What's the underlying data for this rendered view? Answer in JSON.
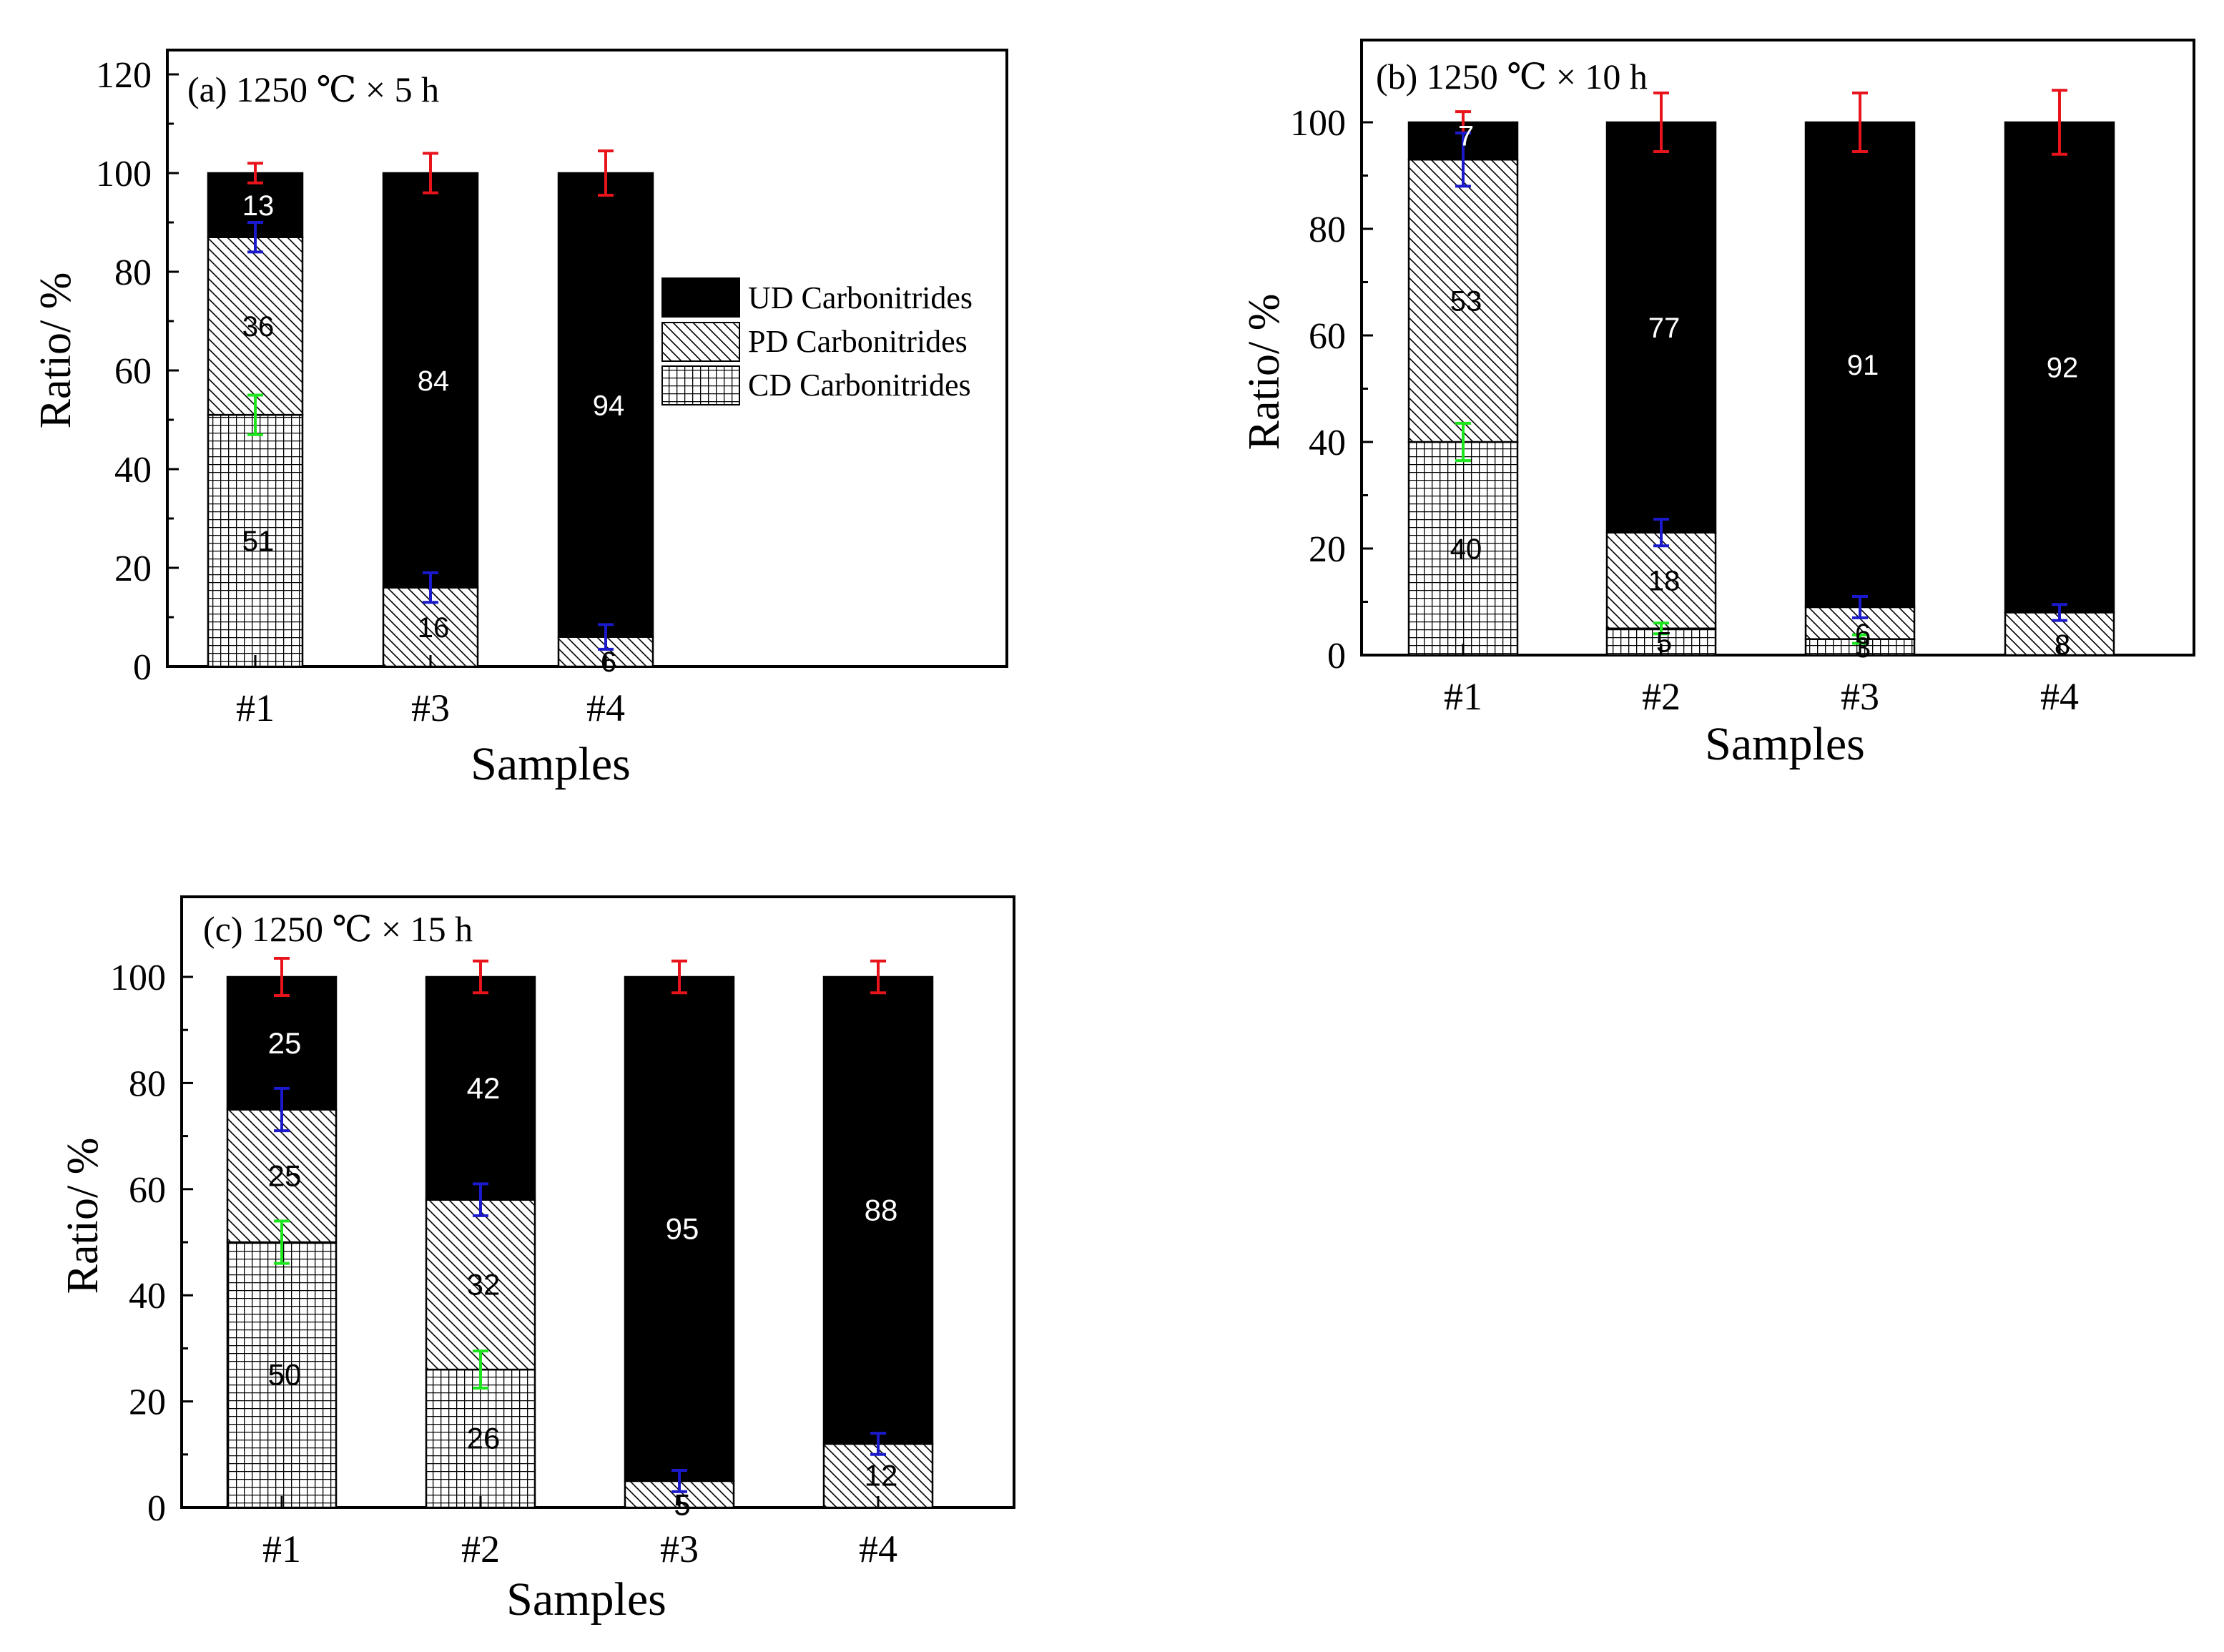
{
  "legend": {
    "UD": "UD Carbonitrides",
    "PD": "PD Carbonitrides",
    "CD": "CD Carbonitrides"
  },
  "colors": {
    "ud_fill": "#000000",
    "error_top": "#e8141b",
    "error_mid": "#1a1acc",
    "error_low": "#1ee61e"
  },
  "chart_data": [
    {
      "type": "bar",
      "stacked": true,
      "title": "(a) 1250 ℃ × 5 h",
      "xlabel": "Samples",
      "ylabel": "Ratio/ %",
      "ylim": [
        0,
        120
      ],
      "yticks": [
        0,
        20,
        40,
        60,
        80,
        100,
        120
      ],
      "categories": [
        "#1",
        "#3",
        "#4"
      ],
      "series": [
        {
          "name": "CD Carbonitrides",
          "values": [
            51,
            0,
            0
          ]
        },
        {
          "name": "PD Carbonitrides",
          "values": [
            36,
            16,
            6
          ]
        },
        {
          "name": "UD Carbonitrides",
          "values": [
            13,
            84,
            94
          ]
        }
      ],
      "labels": [
        {
          "cd": "51",
          "pd": "36",
          "ud": "13"
        },
        {
          "cd": "",
          "pd": "16",
          "ud": "84"
        },
        {
          "cd": "",
          "pd": "6",
          "ud": "94"
        }
      ],
      "error_bars": [
        {
          "top": 2,
          "mid": 3,
          "low": 4
        },
        {
          "top": 4,
          "mid": 3,
          "low": null
        },
        {
          "top": 4.5,
          "mid": 2.5,
          "low": null
        }
      ],
      "legend_position": "right"
    },
    {
      "type": "bar",
      "stacked": true,
      "title": "(b) 1250 ℃ × 10 h",
      "xlabel": "Samples",
      "ylabel": "Ratio/ %",
      "ylim": [
        0,
        110
      ],
      "yticks": [
        0,
        20,
        40,
        60,
        80,
        100
      ],
      "categories": [
        "#1",
        "#2",
        "#3",
        "#4"
      ],
      "series": [
        {
          "name": "CD Carbonitrides",
          "values": [
            40,
            5,
            3,
            0
          ]
        },
        {
          "name": "PD Carbonitrides",
          "values": [
            53,
            18,
            6,
            8
          ]
        },
        {
          "name": "UD Carbonitrides",
          "values": [
            7,
            77,
            91,
            92
          ]
        }
      ],
      "labels": [
        {
          "cd": "40",
          "pd": "53",
          "ud": "7"
        },
        {
          "cd": "5",
          "pd": "18",
          "ud": "77"
        },
        {
          "cd": "3",
          "pd": "6",
          "ud": "91"
        },
        {
          "cd": "",
          "pd": "8",
          "ud": "92"
        }
      ],
      "error_bars": [
        {
          "top": 2,
          "mid": 5,
          "low": 3.5
        },
        {
          "top": 5.5,
          "mid": 2.5,
          "low": 1
        },
        {
          "top": 5.5,
          "mid": 2,
          "low": 0.8
        },
        {
          "top": 6,
          "mid": 1.5,
          "low": null
        }
      ]
    },
    {
      "type": "bar",
      "stacked": true,
      "title": "(c) 1250 ℃ × 15 h",
      "xlabel": "Samples",
      "ylabel": "Ratio/ %",
      "ylim": [
        0,
        110
      ],
      "yticks": [
        0,
        20,
        40,
        60,
        80,
        100
      ],
      "categories": [
        "#1",
        "#2",
        "#3",
        "#4"
      ],
      "series": [
        {
          "name": "CD Carbonitrides",
          "values": [
            50,
            26,
            0,
            0
          ]
        },
        {
          "name": "PD Carbonitrides",
          "values": [
            25,
            32,
            5,
            12
          ]
        },
        {
          "name": "UD Carbonitrides",
          "values": [
            25,
            42,
            95,
            88
          ]
        }
      ],
      "labels": [
        {
          "cd": "50",
          "pd": "25",
          "ud": "25"
        },
        {
          "cd": "26",
          "pd": "32",
          "ud": "42"
        },
        {
          "cd": "",
          "pd": "5",
          "ud": "95"
        },
        {
          "cd": "",
          "pd": "12",
          "ud": "88"
        }
      ],
      "error_bars": [
        {
          "top": 3.5,
          "mid": 4,
          "low": 4
        },
        {
          "top": 3,
          "mid": 3,
          "low": 3.5
        },
        {
          "top": 3,
          "mid": 2,
          "low": null
        },
        {
          "top": 3,
          "mid": 2,
          "low": null
        }
      ]
    }
  ]
}
